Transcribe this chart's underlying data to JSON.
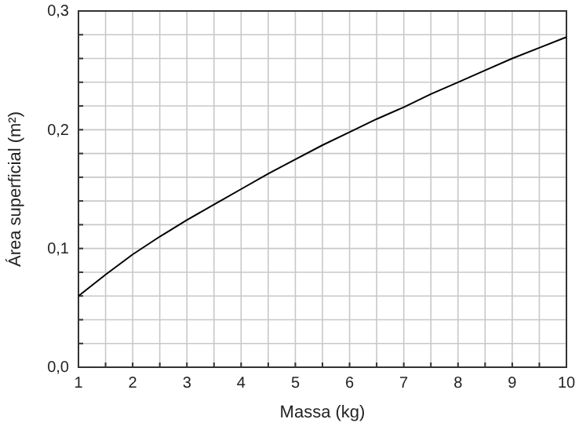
{
  "chart_data": {
    "type": "line",
    "xlabel": "Massa (kg)",
    "ylabel": "Área superficial (m²)",
    "x": [
      1,
      1.5,
      2,
      2.5,
      3,
      3.5,
      4,
      4.5,
      5,
      5.5,
      6,
      6.5,
      7,
      7.5,
      8,
      8.5,
      9,
      9.5,
      10
    ],
    "series": [
      {
        "color": "#000000",
        "values": [
          0.06,
          0.078,
          0.095,
          0.11,
          0.124,
          0.137,
          0.15,
          0.163,
          0.175,
          0.187,
          0.198,
          0.209,
          0.219,
          0.23,
          0.24,
          0.25,
          0.26,
          0.269,
          0.278
        ]
      }
    ],
    "xlim": [
      1,
      10
    ],
    "xticks": [
      1,
      {
        "value": 1.5,
        "label": null
      },
      2,
      {
        "value": 2.5,
        "label": null
      },
      3,
      {
        "value": 3.5,
        "label": null
      },
      4,
      {
        "value": 4.5,
        "label": null
      },
      5,
      {
        "value": 5.5,
        "label": null
      },
      6,
      {
        "value": 6.5,
        "label": null
      },
      7,
      {
        "value": 7.5,
        "label": null
      },
      8,
      {
        "value": 8.5,
        "label": null
      },
      9,
      {
        "value": 9.5,
        "label": null
      },
      10
    ],
    "ylim": [
      0,
      0.3
    ],
    "yticks": [
      {
        "value": 0,
        "label": "0,0"
      },
      {
        "value": 0.02,
        "label": null
      },
      {
        "value": 0.04,
        "label": null
      },
      {
        "value": 0.06,
        "label": null
      },
      {
        "value": 0.08,
        "label": null
      },
      {
        "value": 0.1,
        "label": "0,1"
      },
      {
        "value": 0.12,
        "label": null
      },
      {
        "value": 0.14,
        "label": null
      },
      {
        "value": 0.16,
        "label": null
      },
      {
        "value": 0.18,
        "label": null
      },
      {
        "value": 0.2,
        "label": "0,2"
      },
      {
        "value": 0.22,
        "label": null
      },
      {
        "value": 0.24,
        "label": null
      },
      {
        "value": 0.26,
        "label": null
      },
      {
        "value": 0.28,
        "label": null
      },
      {
        "value": 0.3,
        "label": "0,3"
      }
    ],
    "grid": true,
    "marker": "none",
    "line_style": "solid"
  }
}
